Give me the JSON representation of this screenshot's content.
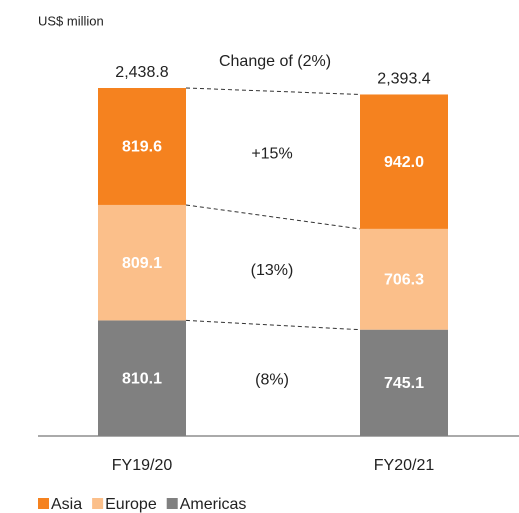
{
  "chart_data": {
    "type": "stacked_bar",
    "ylabel": "US$ million",
    "categories": [
      "FY19/20",
      "FY20/21"
    ],
    "series": [
      {
        "name": "Americas",
        "color": "#808080",
        "values": [
          810.1,
          745.1
        ],
        "change": "(8%)"
      },
      {
        "name": "Europe",
        "color": "#fbbf8a",
        "values": [
          809.1,
          706.3
        ],
        "change": "(13%)"
      },
      {
        "name": "Asia",
        "color": "#f5821f",
        "values": [
          819.6,
          942.0
        ],
        "value_labels": [
          "819.6",
          "942.0"
        ],
        "change": "+15%"
      }
    ],
    "totals": [
      2438.8,
      2393.4
    ],
    "total_labels": [
      "2,438.8",
      "2,393.4"
    ],
    "total_change": "Change of (2%)"
  }
}
